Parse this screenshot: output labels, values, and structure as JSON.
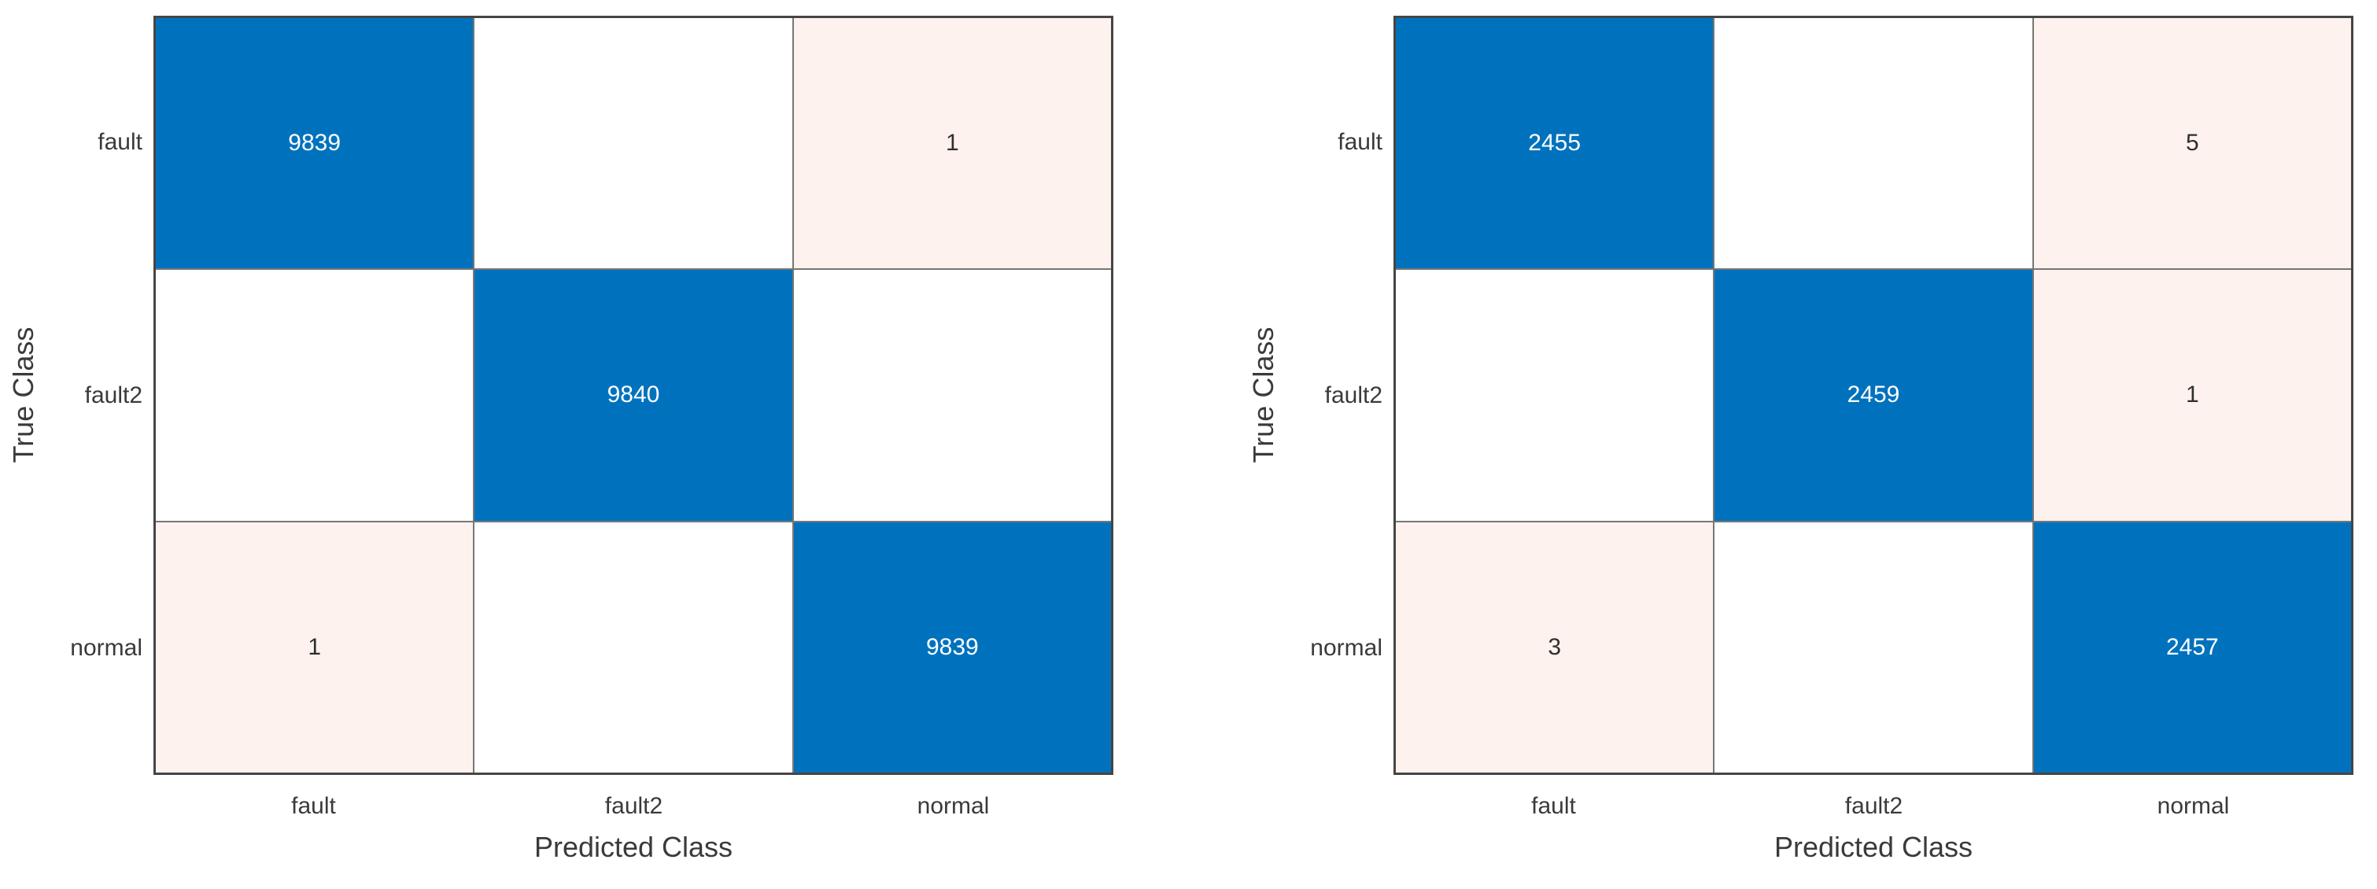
{
  "colors": {
    "diagonal-color": "#0072bd",
    "offdiag-color": "#fdf2ed",
    "empty-color": "#ffffff",
    "grid-line-color": "#767676",
    "outer-border-color": "#454545",
    "label-color": "#3a3a3a",
    "value-on-diagonal-color": "#ffffff",
    "value-on-offdiag-color": "#2f2f2f"
  },
  "charts": [
    {
      "xlabel": "Predicted Class",
      "ylabel": "True Class",
      "col_labels": [
        "fault",
        "fault2",
        "normal"
      ],
      "rows": [
        {
          "label": "fault",
          "cells": [
            {
              "value": "9839",
              "type": "diagonal"
            },
            {
              "value": "",
              "type": "empty"
            },
            {
              "value": "1",
              "type": "offdiag"
            }
          ]
        },
        {
          "label": "fault2",
          "cells": [
            {
              "value": "",
              "type": "empty"
            },
            {
              "value": "9840",
              "type": "diagonal"
            },
            {
              "value": "",
              "type": "empty"
            }
          ]
        },
        {
          "label": "normal",
          "cells": [
            {
              "value": "1",
              "type": "offdiag"
            },
            {
              "value": "",
              "type": "empty"
            },
            {
              "value": "9839",
              "type": "diagonal"
            }
          ]
        }
      ]
    },
    {
      "xlabel": "Predicted Class",
      "ylabel": "True Class",
      "col_labels": [
        "fault",
        "fault2",
        "normal"
      ],
      "rows": [
        {
          "label": "fault",
          "cells": [
            {
              "value": "2455",
              "type": "diagonal"
            },
            {
              "value": "",
              "type": "empty"
            },
            {
              "value": "5",
              "type": "offdiag"
            }
          ]
        },
        {
          "label": "fault2",
          "cells": [
            {
              "value": "",
              "type": "empty"
            },
            {
              "value": "2459",
              "type": "diagonal"
            },
            {
              "value": "1",
              "type": "offdiag"
            }
          ]
        },
        {
          "label": "normal",
          "cells": [
            {
              "value": "3",
              "type": "offdiag"
            },
            {
              "value": "",
              "type": "empty"
            },
            {
              "value": "2457",
              "type": "diagonal"
            }
          ]
        }
      ]
    }
  ],
  "chart_data": [
    {
      "type": "heatmap",
      "subtype": "confusion-matrix",
      "xlabel": "Predicted Class",
      "ylabel": "True Class",
      "x_categories": [
        "fault",
        "fault2",
        "normal"
      ],
      "y_categories": [
        "fault",
        "fault2",
        "normal"
      ],
      "matrix": [
        [
          9839,
          0,
          1
        ],
        [
          0,
          9840,
          0
        ],
        [
          1,
          0,
          9839
        ]
      ],
      "zero_cells_blank": true,
      "diagonal_color": "#0072bd",
      "nonzero_offdiagonal_color": "#fdf2ed",
      "legend": "none",
      "grid": "on"
    },
    {
      "type": "heatmap",
      "subtype": "confusion-matrix",
      "xlabel": "Predicted Class",
      "ylabel": "True Class",
      "x_categories": [
        "fault",
        "fault2",
        "normal"
      ],
      "y_categories": [
        "fault",
        "fault2",
        "normal"
      ],
      "matrix": [
        [
          2455,
          0,
          5
        ],
        [
          0,
          2459,
          1
        ],
        [
          3,
          0,
          2457
        ]
      ],
      "zero_cells_blank": true,
      "diagonal_color": "#0072bd",
      "nonzero_offdiagonal_color": "#fdf2ed",
      "legend": "none",
      "grid": "on"
    }
  ]
}
